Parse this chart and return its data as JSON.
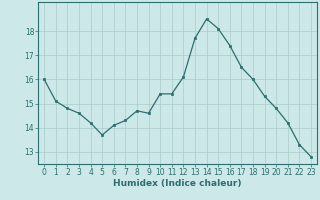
{
  "x": [
    0,
    1,
    2,
    3,
    4,
    5,
    6,
    7,
    8,
    9,
    10,
    11,
    12,
    13,
    14,
    15,
    16,
    17,
    18,
    19,
    20,
    21,
    22,
    23
  ],
  "y": [
    16.0,
    15.1,
    14.8,
    14.6,
    14.2,
    13.7,
    14.1,
    14.3,
    14.7,
    14.6,
    15.4,
    15.4,
    16.1,
    17.7,
    18.5,
    18.1,
    17.4,
    16.5,
    16.0,
    15.3,
    14.8,
    14.2,
    13.3,
    12.8
  ],
  "line_color": "#2d6e6e",
  "marker": "s",
  "marker_size": 2.0,
  "bg_color": "#cce8e8",
  "grid_color": "#aacccc",
  "xlabel": "Humidex (Indice chaleur)",
  "ylim": [
    12.5,
    19.2
  ],
  "xlim": [
    -0.5,
    23.5
  ],
  "yticks": [
    13,
    14,
    15,
    16,
    17,
    18
  ],
  "xticks": [
    0,
    1,
    2,
    3,
    4,
    5,
    6,
    7,
    8,
    9,
    10,
    11,
    12,
    13,
    14,
    15,
    16,
    17,
    18,
    19,
    20,
    21,
    22,
    23
  ],
  "tick_fontsize": 5.5,
  "xlabel_fontsize": 6.5,
  "line_width": 0.9
}
